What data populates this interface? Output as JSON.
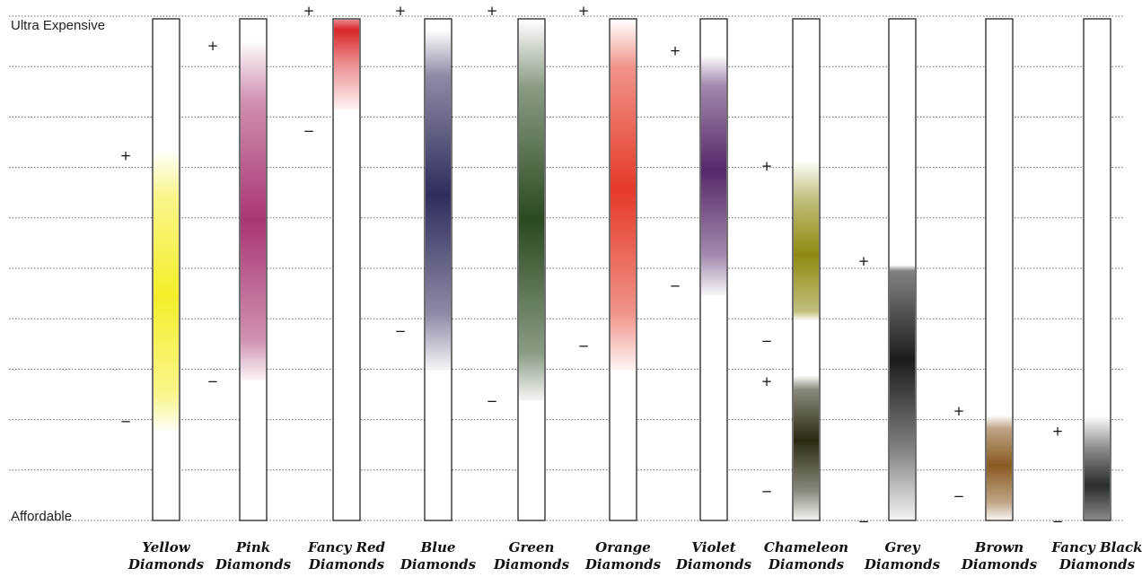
{
  "chart_data": {
    "type": "range",
    "y_axis": {
      "top_label": "Ultra Expensive",
      "bottom_label": "Affordable",
      "scale": [
        0,
        1
      ],
      "gridlines": 11
    },
    "grid": true,
    "series": [
      {
        "label1": "Yellow",
        "label2": "Diamonds",
        "low": 0.18,
        "high": 0.74,
        "color": "#f4ee2a",
        "peak": 0.45,
        "plus": 0.73,
        "minus": 0.2
      },
      {
        "label1": "Pink",
        "label2": "Diamonds",
        "low": 0.28,
        "high": 0.96,
        "color": "#a93672",
        "peak": 0.6,
        "plus": 0.95,
        "minus": 0.28
      },
      {
        "label1": "Fancy Red",
        "label2": "Diamonds",
        "low": 0.82,
        "high": 1.0,
        "color": "#d9262a",
        "peak": 0.98,
        "plus": 1.02,
        "minus": 0.78
      },
      {
        "label1": "Blue",
        "label2": "Diamonds",
        "low": 0.3,
        "high": 0.98,
        "color": "#2f2d5e",
        "peak": 0.65,
        "plus": 1.02,
        "minus": 0.38
      },
      {
        "label1": "Green",
        "label2": "Diamonds",
        "low": 0.24,
        "high": 1.0,
        "color": "#2b4a20",
        "peak": 0.6,
        "plus": 1.02,
        "minus": 0.24
      },
      {
        "label1": "Orange",
        "label2": "Diamonds",
        "low": 0.3,
        "high": 1.0,
        "color": "#e53a28",
        "peak": 0.66,
        "plus": 1.02,
        "minus": 0.35
      },
      {
        "label1": "Violet",
        "label2": "Diamonds",
        "low": 0.45,
        "high": 0.93,
        "color": "#55286a",
        "peak": 0.7,
        "plus": 0.94,
        "minus": 0.47
      },
      {
        "label1": "Chameleon",
        "label2": "Diamonds",
        "low": 0.4,
        "high": 0.72,
        "color": "#8e8a10",
        "peak": 0.53,
        "plus": 0.71,
        "minus": 0.36
      },
      {
        "label1": "Chameleon",
        "label2": "Diamonds",
        "low": 0.0,
        "high": 0.29,
        "color": "#2b2a12",
        "peak": 0.16,
        "plus": 0.28,
        "minus": 0.06
      },
      {
        "label1": "Grey",
        "label2": "Diamonds",
        "low": 0.0,
        "high": 0.51,
        "color": "#1c1c1c",
        "peak": 0.32,
        "plus": 0.52,
        "minus": 0.0
      },
      {
        "label1": "Brown",
        "label2": "Diamonds",
        "low": 0.0,
        "high": 0.21,
        "color": "#8a5a22",
        "peak": 0.11,
        "plus": 0.22,
        "minus": 0.05
      },
      {
        "label1": "Fancy Black",
        "label2": "Diamonds",
        "low": 0.0,
        "high": 0.21,
        "color": "#2a2d2d",
        "peak": 0.07,
        "plus": 0.18,
        "minus": 0.0
      }
    ],
    "plus_symbol": "+",
    "minus_symbol": "−"
  },
  "labels": {
    "ultra_expensive": "Ultra Expensive",
    "affordable": "Affordable",
    "columns": [
      [
        "Yellow",
        "Diamonds"
      ],
      [
        "Pink",
        "Diamonds"
      ],
      [
        "Fancy Red",
        "Diamonds"
      ],
      [
        "Blue",
        "Diamonds"
      ],
      [
        "Green",
        "Diamonds"
      ],
      [
        "Orange",
        "Diamonds"
      ],
      [
        "Violet",
        "Diamonds"
      ],
      [
        "Chameleon",
        "Diamonds"
      ],
      [
        "Grey",
        "Diamonds"
      ],
      [
        "Brown",
        "Diamonds"
      ],
      [
        "Fancy Black",
        "Diamonds"
      ]
    ]
  }
}
